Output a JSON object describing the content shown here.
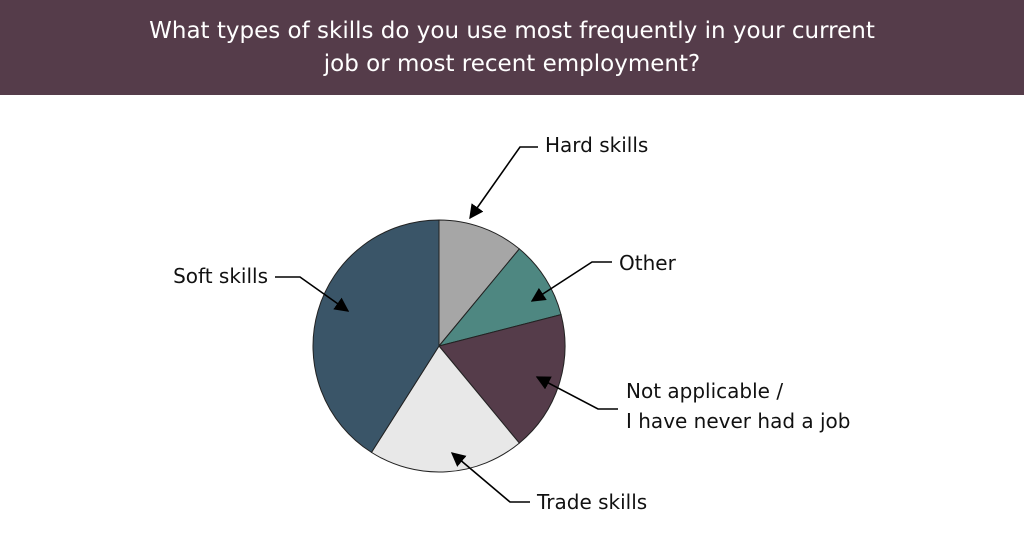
{
  "chart_data": {
    "type": "pie",
    "title": "What types of skills do you use most frequently in your current job or most recent employment?",
    "start_angle": "12 o'clock",
    "direction": "clockwise",
    "slices": [
      {
        "label": "Hard skills",
        "value": 11,
        "color": "#a6a6a6"
      },
      {
        "label": "Other",
        "value": 10,
        "color": "#4e8781"
      },
      {
        "label": "Not applicable / I have never had a job",
        "label_lines": [
          "Not applicable /",
          "I have never had a job"
        ],
        "value": 18,
        "color": "#553c4a"
      },
      {
        "label": "Trade skills",
        "value": 20,
        "color": "#e8e8e8"
      },
      {
        "label": "Soft skills",
        "value": 41,
        "color": "#3a5568"
      }
    ],
    "title_bar_color": "#553c4a"
  }
}
